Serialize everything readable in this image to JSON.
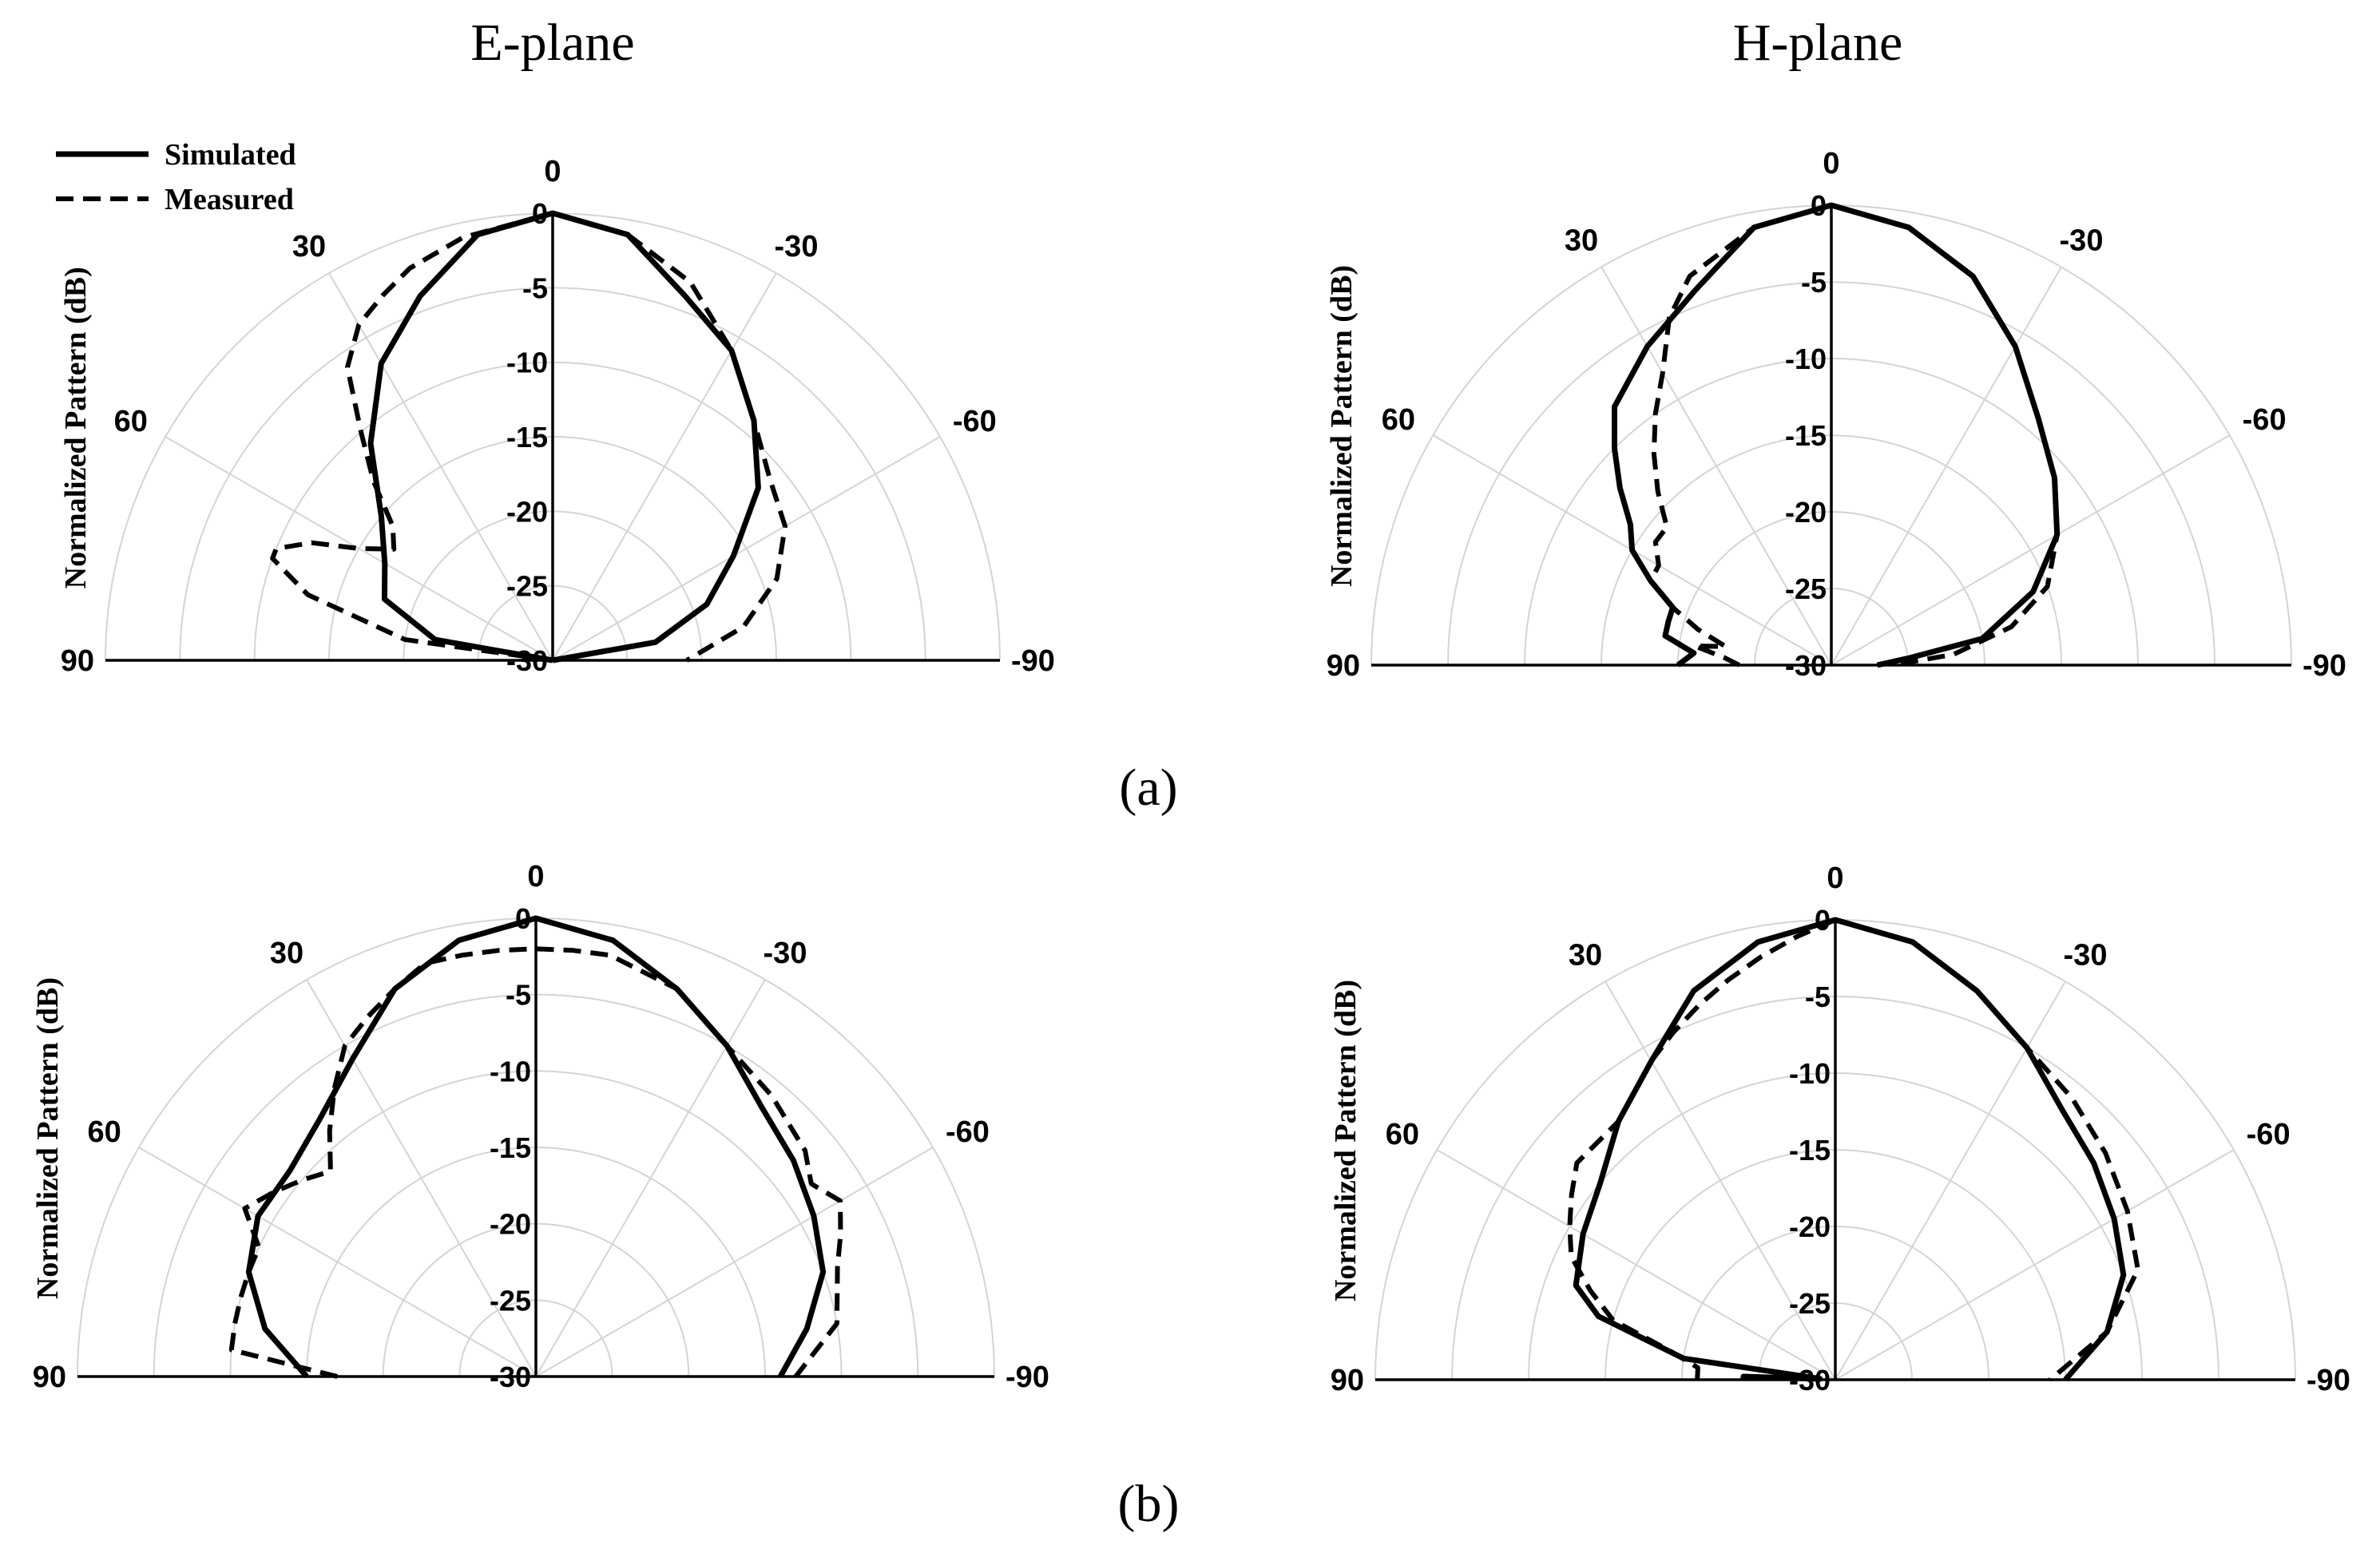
{
  "figure": {
    "column_titles": [
      "E-plane",
      "H-plane"
    ],
    "captions": [
      "(a)",
      "(b)"
    ],
    "legend": [
      {
        "label": "Simulated",
        "style": "solid"
      },
      {
        "label": "Measured",
        "style": "dashed"
      }
    ],
    "colors": {
      "lines": "#000000",
      "grid": "#d4d4d4"
    }
  },
  "chart_data": [
    {
      "type": "polar",
      "column_title": "E-plane",
      "row_caption": "(a)",
      "ylabel": "Normalized Pattern (dB)",
      "rlim": [
        -30,
        0
      ],
      "radial_ticks": [
        "0",
        "-5",
        "-10",
        "-15",
        "-20",
        "-25",
        "-30"
      ],
      "angle_ticks": [
        "90",
        "60",
        "30",
        "0",
        "-30",
        "-60",
        "-90"
      ],
      "legend_position": "top-left",
      "series": [
        {
          "name": "Simulated",
          "style": "solid",
          "points": [
            [
              90,
              -30
            ],
            [
              80,
              -22
            ],
            [
              70,
              -18
            ],
            [
              60,
              -17
            ],
            [
              50,
              -15
            ],
            [
              40,
              -11
            ],
            [
              30,
              -7
            ],
            [
              20,
              -4
            ],
            [
              10,
              -1
            ],
            [
              0,
              0
            ],
            [
              -10,
              -1
            ],
            [
              -20,
              -4
            ],
            [
              -30,
              -6
            ],
            [
              -40,
              -9
            ],
            [
              -50,
              -12
            ],
            [
              -60,
              -16
            ],
            [
              -70,
              -19
            ],
            [
              -80,
              -23
            ],
            [
              -90,
              -30
            ]
          ]
        },
        {
          "name": "Measured",
          "style": "dashed",
          "points": [
            [
              90,
              -30
            ],
            [
              82,
              -20
            ],
            [
              75,
              -13
            ],
            [
              70,
              -10
            ],
            [
              68,
              -10
            ],
            [
              64,
              -12
            ],
            [
              60,
              -15
            ],
            [
              55,
              -17
            ],
            [
              50,
              -16
            ],
            [
              45,
              -13
            ],
            [
              40,
              -10
            ],
            [
              35,
              -6
            ],
            [
              30,
              -4
            ],
            [
              25,
              -3
            ],
            [
              20,
              -2
            ],
            [
              12,
              -1
            ],
            [
              0,
              0
            ],
            [
              -10,
              -1
            ],
            [
              -20,
              -3
            ],
            [
              -30,
              -6
            ],
            [
              -40,
              -9
            ],
            [
              -50,
              -11
            ],
            [
              -60,
              -12
            ],
            [
              -70,
              -14
            ],
            [
              -80,
              -17
            ],
            [
              -90,
              -21
            ]
          ]
        }
      ]
    },
    {
      "type": "polar",
      "column_title": "H-plane",
      "row_caption": "(a)",
      "ylabel": "Normalized Pattern (dB)",
      "rlim": [
        -30,
        0
      ],
      "radial_ticks": [
        "0",
        "-5",
        "-10",
        "-15",
        "-20",
        "-25",
        "-30"
      ],
      "angle_ticks": [
        "90",
        "60",
        "30",
        "0",
        "-30",
        "-60",
        "-90"
      ],
      "series": [
        {
          "name": "Simulated",
          "style": "solid",
          "points": [
            [
              90,
              -20
            ],
            [
              85,
              -21
            ],
            [
              80,
              -19
            ],
            [
              75,
              -19
            ],
            [
              70,
              -19
            ],
            [
              65,
              -17
            ],
            [
              60,
              -15
            ],
            [
              55,
              -14
            ],
            [
              50,
              -12
            ],
            [
              45,
              -10
            ],
            [
              40,
              -8
            ],
            [
              30,
              -6
            ],
            [
              20,
              -4
            ],
            [
              10,
              -1
            ],
            [
              0,
              0
            ],
            [
              -10,
              -1
            ],
            [
              -20,
              -3
            ],
            [
              -30,
              -6
            ],
            [
              -40,
              -9
            ],
            [
              -50,
              -11
            ],
            [
              -60,
              -13
            ],
            [
              -70,
              -16
            ],
            [
              -80,
              -20
            ],
            [
              -85,
              -25
            ],
            [
              -90,
              -27
            ]
          ]
        },
        {
          "name": "Measured",
          "style": "dashed",
          "points": [
            [
              90,
              -24
            ],
            [
              86,
              -23
            ],
            [
              82,
              -21
            ],
            [
              80,
              -23
            ],
            [
              75,
              -21
            ],
            [
              70,
              -19
            ],
            [
              65,
              -17
            ],
            [
              60,
              -17
            ],
            [
              55,
              -16
            ],
            [
              50,
              -16
            ],
            [
              45,
              -14
            ],
            [
              40,
              -12
            ],
            [
              35,
              -10
            ],
            [
              30,
              -8
            ],
            [
              25,
              -5
            ],
            [
              20,
              -3
            ],
            [
              10,
              -1
            ],
            [
              0,
              0
            ],
            [
              -10,
              -1
            ],
            [
              -20,
              -3
            ],
            [
              -30,
              -6
            ],
            [
              -40,
              -9
            ],
            [
              -50,
              -11
            ],
            [
              -60,
              -13
            ],
            [
              -70,
              -15
            ],
            [
              -78,
              -18
            ],
            [
              -85,
              -22
            ],
            [
              -90,
              -26
            ]
          ]
        }
      ]
    },
    {
      "type": "polar",
      "column_title": "E-plane",
      "row_caption": "(b)",
      "ylabel": "Normalized Pattern (dB)",
      "rlim": [
        -30,
        0
      ],
      "radial_ticks": [
        "0",
        "-5",
        "-10",
        "-15",
        "-20",
        "-25",
        "-30"
      ],
      "angle_ticks": [
        "90",
        "60",
        "30",
        "0",
        "-30",
        "-60",
        "-90"
      ],
      "series": [
        {
          "name": "Simulated",
          "style": "solid",
          "points": [
            [
              90,
              -15
            ],
            [
              80,
              -12
            ],
            [
              70,
              -10
            ],
            [
              60,
              -9
            ],
            [
              50,
              -9
            ],
            [
              40,
              -8
            ],
            [
              30,
              -6
            ],
            [
              20,
              -3
            ],
            [
              10,
              -1
            ],
            [
              0,
              0
            ],
            [
              -10,
              -1
            ],
            [
              -20,
              -3
            ],
            [
              -30,
              -5
            ],
            [
              -40,
              -7
            ],
            [
              -50,
              -8
            ],
            [
              -60,
              -9
            ],
            [
              -70,
              -10
            ],
            [
              -80,
              -12
            ],
            [
              -90,
              -14
            ]
          ]
        },
        {
          "name": "Measured",
          "style": "dashed",
          "points": [
            [
              90,
              -17
            ],
            [
              85,
              -10
            ],
            [
              80,
              -10
            ],
            [
              75,
              -10
            ],
            [
              70,
              -10
            ],
            [
              65,
              -10
            ],
            [
              60,
              -8
            ],
            [
              55,
              -9
            ],
            [
              50,
              -10
            ],
            [
              45,
              -11
            ],
            [
              40,
              -9
            ],
            [
              35,
              -7
            ],
            [
              30,
              -5
            ],
            [
              25,
              -4
            ],
            [
              20,
              -3
            ],
            [
              15,
              -2
            ],
            [
              10,
              -2
            ],
            [
              5,
              -2
            ],
            [
              0,
              -2
            ],
            [
              -5,
              -2
            ],
            [
              -10,
              -2
            ],
            [
              -20,
              -3
            ],
            [
              -30,
              -5
            ],
            [
              -40,
              -6
            ],
            [
              -50,
              -7
            ],
            [
              -55,
              -8
            ],
            [
              -60,
              -7
            ],
            [
              -65,
              -8
            ],
            [
              -70,
              -9
            ],
            [
              -80,
              -10
            ],
            [
              -90,
              -13
            ]
          ]
        }
      ]
    },
    {
      "type": "polar",
      "column_title": "H-plane",
      "row_caption": "(b)",
      "ylabel": "Normalized Pattern (dB)",
      "rlim": [
        -30,
        0
      ],
      "radial_ticks": [
        "0",
        "-5",
        "-10",
        "-15",
        "-20",
        "-25",
        "-30"
      ],
      "angle_ticks": [
        "90",
        "60",
        "30",
        "0",
        "-30",
        "-60",
        "-90"
      ],
      "series": [
        {
          "name": "Simulated",
          "style": "solid",
          "points": [
            [
              90,
              -24
            ],
            [
              88,
              -24
            ],
            [
              87,
              -29
            ],
            [
              86,
              -29
            ],
            [
              82,
              -20
            ],
            [
              75,
              -14
            ],
            [
              70,
              -12
            ],
            [
              60,
              -11
            ],
            [
              50,
              -10
            ],
            [
              40,
              -8
            ],
            [
              30,
              -6
            ],
            [
              20,
              -3
            ],
            [
              10,
              -1
            ],
            [
              0,
              0
            ],
            [
              -10,
              -1
            ],
            [
              -20,
              -3
            ],
            [
              -30,
              -5
            ],
            [
              -40,
              -7
            ],
            [
              -50,
              -8
            ],
            [
              -60,
              -9
            ],
            [
              -70,
              -10
            ],
            [
              -80,
              -12
            ],
            [
              -90,
              -15
            ]
          ]
        },
        {
          "name": "Measured",
          "style": "dashed",
          "points": [
            [
              90,
              -21
            ],
            [
              85,
              -21
            ],
            [
              80,
              -19
            ],
            [
              75,
              -15
            ],
            [
              70,
              -13
            ],
            [
              65,
              -11
            ],
            [
              60,
              -10
            ],
            [
              55,
              -9
            ],
            [
              50,
              -8
            ],
            [
              40,
              -8
            ],
            [
              30,
              -6
            ],
            [
              25,
              -5
            ],
            [
              20,
              -4
            ],
            [
              15,
              -3
            ],
            [
              10,
              -2
            ],
            [
              5,
              -1
            ],
            [
              0,
              0
            ],
            [
              -10,
              -1
            ],
            [
              -20,
              -3
            ],
            [
              -30,
              -5
            ],
            [
              -40,
              -6
            ],
            [
              -50,
              -7
            ],
            [
              -60,
              -8
            ],
            [
              -70,
              -9
            ],
            [
              -80,
              -12
            ],
            [
              -90,
              -16
            ]
          ]
        }
      ]
    }
  ]
}
